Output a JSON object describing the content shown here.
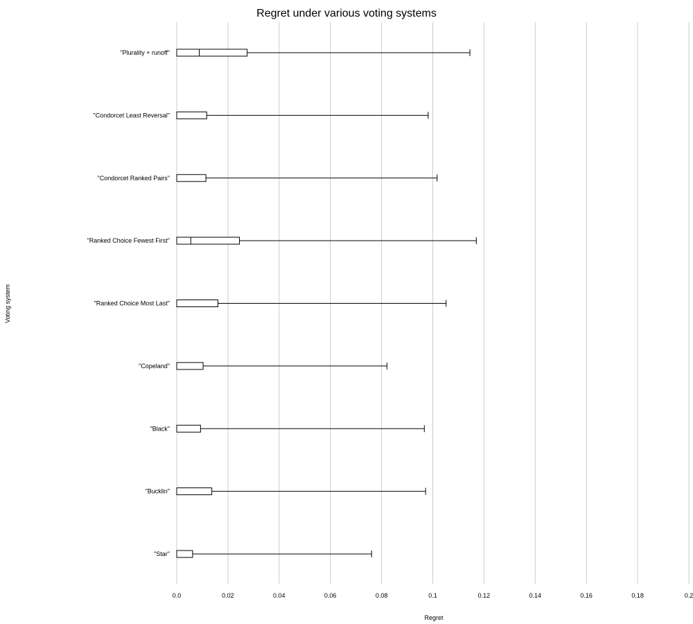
{
  "chart_data": {
    "type": "box",
    "orientation": "horizontal",
    "title": "Regret under various voting systems",
    "xlabel": "Regret",
    "ylabel": "Voting system",
    "xlim": [
      0,
      0.2
    ],
    "xticks": [
      0,
      0.02,
      0.04,
      0.06,
      0.08,
      0.1,
      0.12,
      0.14,
      0.16,
      0.18,
      0.2
    ],
    "xtick_labels": [
      "0.0",
      "0.02",
      "0.04",
      "0.06",
      "0.08",
      "0.1",
      "0.12",
      "0.14",
      "0.16",
      "0.18",
      "0.2"
    ],
    "grid": "vertical",
    "colors": {
      "grid": "#cccccc",
      "box_fill": "#ffffff",
      "stroke": "#000000"
    },
    "series": [
      {
        "name": "\"Plurality + runoff\"",
        "min": 0.0,
        "q1": 0.0,
        "median": 0.0088,
        "q3": 0.0275,
        "max": 0.1145
      },
      {
        "name": "\"Condorcet Least Reversal\"",
        "min": 0.0,
        "q1": 0.0,
        "median": 0.0,
        "q3": 0.0117,
        "max": 0.0982
      },
      {
        "name": "\"Condorcet Ranked Pairs\"",
        "min": 0.0,
        "q1": 0.0,
        "median": 0.0,
        "q3": 0.0114,
        "max": 0.1017
      },
      {
        "name": "\"Ranked Choice Fewest First\"",
        "min": 0.0,
        "q1": 0.0,
        "median": 0.0055,
        "q3": 0.0245,
        "max": 0.117
      },
      {
        "name": "\"Ranked Choice Most Last\"",
        "min": 0.0,
        "q1": 0.0,
        "median": 0.0,
        "q3": 0.0161,
        "max": 0.1052
      },
      {
        "name": "\"Copeland\"",
        "min": 0.0,
        "q1": 0.0,
        "median": 0.0,
        "q3": 0.0103,
        "max": 0.0821
      },
      {
        "name": "\"Black\"",
        "min": 0.0,
        "q1": 0.0,
        "median": 0.0,
        "q3": 0.0093,
        "max": 0.0967
      },
      {
        "name": "\"Bucklin\"",
        "min": 0.0,
        "q1": 0.0,
        "median": 0.0,
        "q3": 0.0137,
        "max": 0.0972
      },
      {
        "name": "\"Star\"",
        "min": 0.0,
        "q1": 0.0,
        "median": 0.0,
        "q3": 0.0062,
        "max": 0.0761
      }
    ]
  }
}
